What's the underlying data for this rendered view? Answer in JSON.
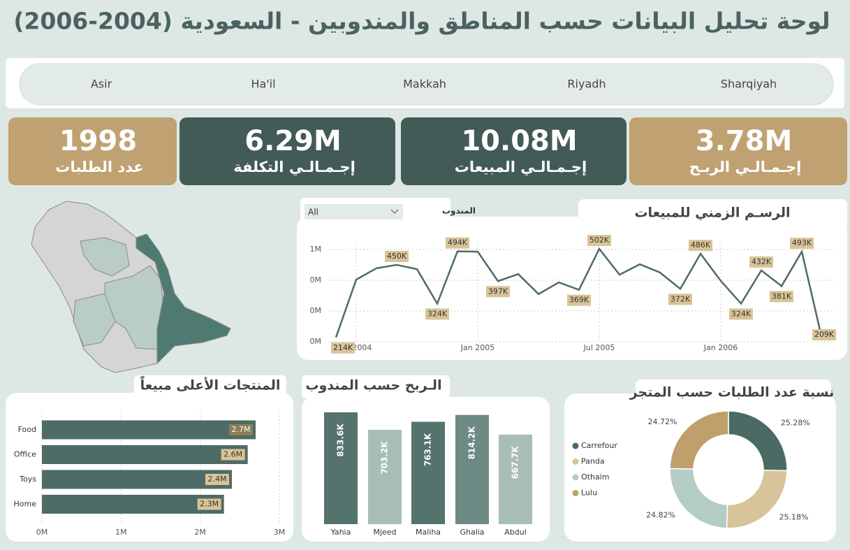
{
  "title": "لوحة تحليل البيانات حسب المناطق والمندوبين - السعودية (2004-2006)",
  "regions": [
    "Asir",
    "Ha'il",
    "Makkah",
    "Riyadh",
    "Sharqiyah"
  ],
  "kpis": [
    {
      "value": "1998",
      "label": "عدد الطلبات"
    },
    {
      "value": "6.29M",
      "label": "إجـمـالـي التكلفة"
    },
    {
      "value": "10.08M",
      "label": "إجـمـالـي المبيعات"
    },
    {
      "value": "3.78M",
      "label": "إجـمـالـي الربـح"
    }
  ],
  "rep_filter": {
    "label": "المندوب",
    "value": "All"
  },
  "chart_data": [
    {
      "type": "line",
      "title": "الرسـم الزمني للمبيعات",
      "color": "#4f6b66",
      "grid": true,
      "x": [
        "2004-06",
        "2004-07",
        "2004-08",
        "2004-09",
        "2004-10",
        "2004-11",
        "2004-12",
        "2005-01",
        "2005-02",
        "2005-03",
        "2005-04",
        "2005-05",
        "2005-06",
        "2005-07",
        "2005-08",
        "2005-09",
        "2005-10",
        "2005-11",
        "2005-12",
        "2006-01",
        "2006-02",
        "2006-03",
        "2006-04",
        "2006-05",
        "2006-06"
      ],
      "values": [
        214000,
        402000,
        439000,
        450000,
        436000,
        324000,
        494000,
        493000,
        397000,
        420000,
        355000,
        393000,
        369000,
        502000,
        418000,
        452000,
        425000,
        372000,
        486000,
        398000,
        324000,
        432000,
        381000,
        493000,
        209000
      ],
      "value_labels": [
        "214K",
        null,
        null,
        "450K",
        null,
        "324K",
        "494K",
        null,
        "397K",
        null,
        null,
        null,
        "369K",
        "502K",
        null,
        null,
        null,
        "372K",
        "486K",
        null,
        "324K",
        "432K",
        "381K",
        "493K",
        "209K"
      ],
      "xticks": [
        {
          "value": "2004-07",
          "label": "Jul 2004"
        },
        {
          "value": "2005-01",
          "label": "Jan 2005"
        },
        {
          "value": "2005-07",
          "label": "Jul 2005"
        },
        {
          "value": "2006-01",
          "label": "Jan 2006"
        }
      ],
      "ylim": [
        200000,
        510000
      ],
      "yticks": [
        {
          "value": 200000,
          "label": "0M"
        },
        {
          "value": 300000,
          "label": "0M"
        },
        {
          "value": 400000,
          "label": "0M"
        },
        {
          "value": 500000,
          "label": "1M"
        }
      ]
    },
    {
      "type": "bar",
      "horizontal": true,
      "title": "المنتجات الأعلى مبيعاً",
      "color": "#4f6b66",
      "grid": true,
      "categories": [
        "Food",
        "Office",
        "Toys",
        "Home"
      ],
      "values": [
        2700000,
        2600000,
        2400000,
        2300000
      ],
      "value_labels": [
        "2.7M",
        "2.6M",
        "2.4M",
        "2.3M"
      ],
      "xlim": [
        0,
        3000000
      ],
      "xticks": [
        {
          "value": 0,
          "label": "0M"
        },
        {
          "value": 1000000,
          "label": "1M"
        },
        {
          "value": 2000000,
          "label": "2M"
        },
        {
          "value": 3000000,
          "label": "3M"
        }
      ]
    },
    {
      "type": "bar",
      "title": "الـربح حسب المندوب",
      "categories": [
        "Yahia",
        "Mjeed",
        "Maliha",
        "Ghalia",
        "Abdul"
      ],
      "values": [
        833600,
        703200,
        763100,
        814200,
        667700
      ],
      "value_labels": [
        "833.6K",
        "703.2K",
        "763.1K",
        "814.2K",
        "667.7K"
      ],
      "colors": [
        "#55736d",
        "#a9bdb8",
        "#55736d",
        "#6e8a84",
        "#a9bdb8"
      ]
    },
    {
      "type": "pie",
      "title": "نسبة عدد الطلبات حسب  المتجر",
      "categories": [
        "Carrefour",
        "Panda",
        "Othaim",
        "Lulu"
      ],
      "values": [
        25.28,
        25.18,
        24.82,
        24.72
      ],
      "value_labels": [
        "25.28%",
        "25.18%",
        "24.82%",
        "24.72%"
      ],
      "colors": [
        "#4a6b63",
        "#d8c49a",
        "#b3ccc5",
        "#bfa06a"
      ]
    }
  ]
}
